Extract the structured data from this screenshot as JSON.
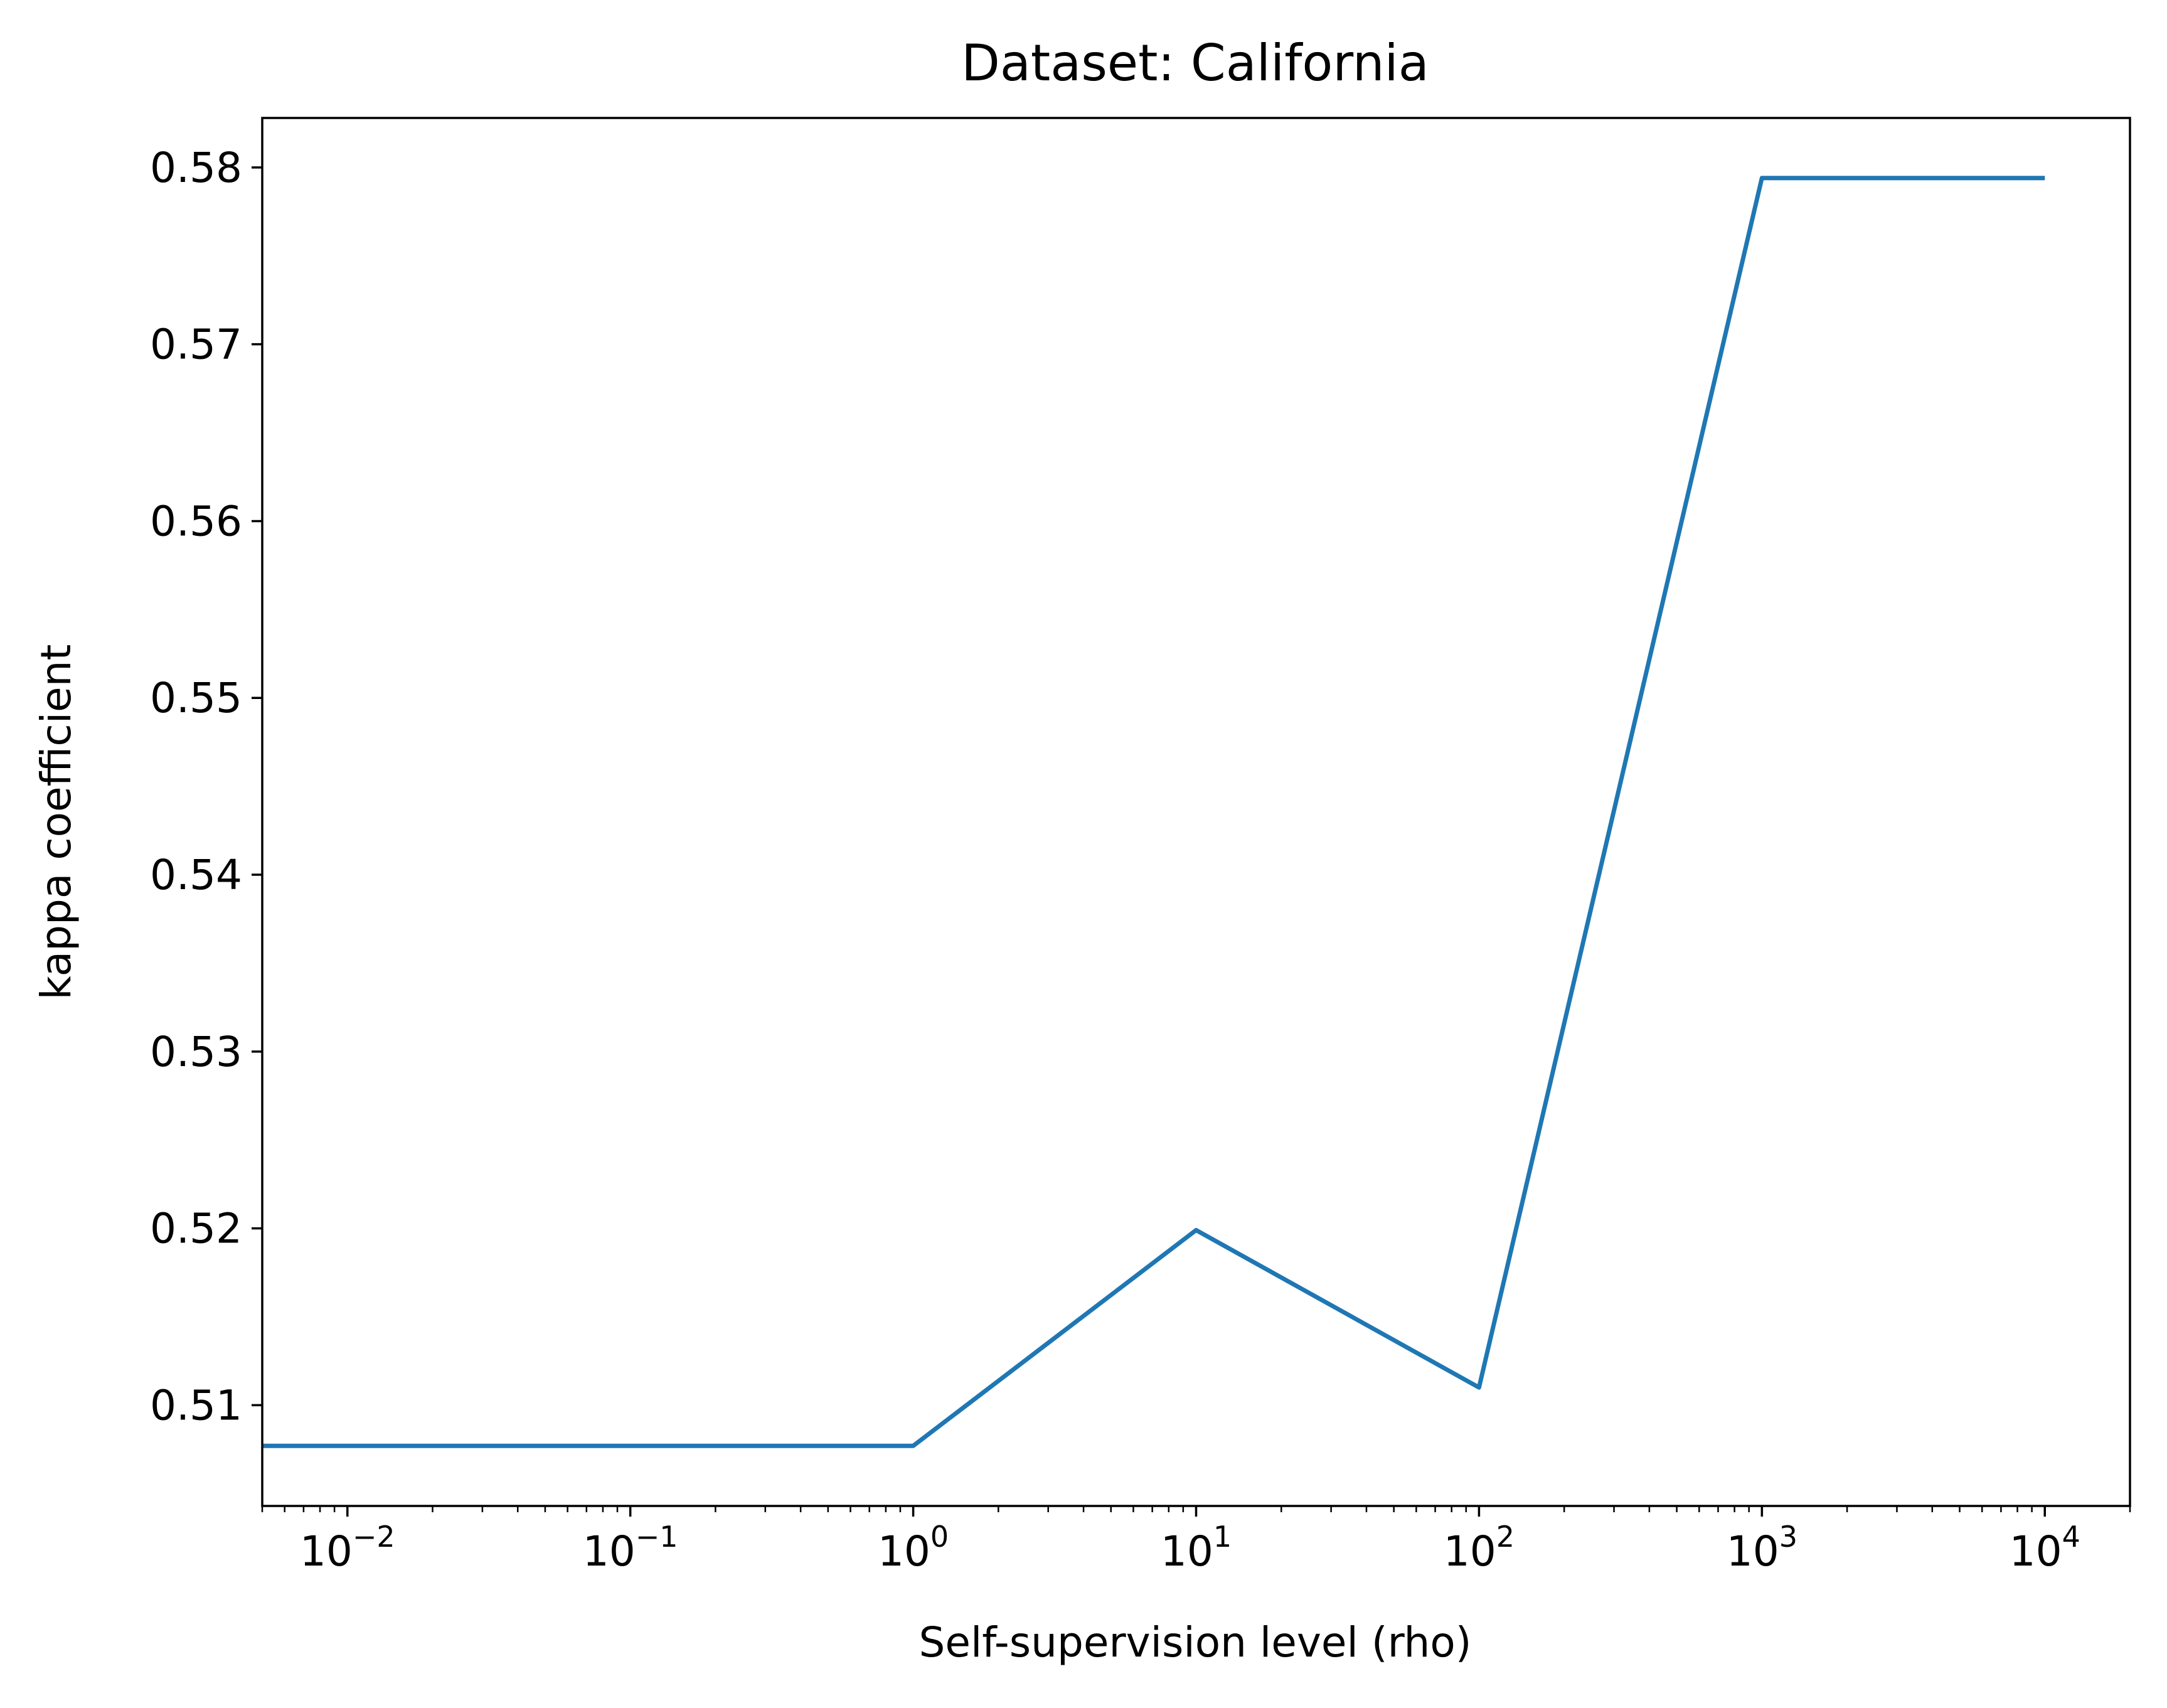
{
  "chart_data": {
    "type": "line",
    "title": "Dataset: California",
    "xlabel": "Self-supervision level (rho)",
    "ylabel": "kappa coefficient",
    "x_scale": "log",
    "xlim": [
      0.005,
      20000
    ],
    "ylim": [
      0.5043,
      0.5828
    ],
    "grid": false,
    "legend": "none",
    "x_ticks": [
      {
        "value": 0.01,
        "base": "10",
        "exp": "−2"
      },
      {
        "value": 0.1,
        "base": "10",
        "exp": "−1"
      },
      {
        "value": 1,
        "base": "10",
        "exp": "0"
      },
      {
        "value": 10,
        "base": "10",
        "exp": "1"
      },
      {
        "value": 100,
        "base": "10",
        "exp": "2"
      },
      {
        "value": 1000,
        "base": "10",
        "exp": "3"
      },
      {
        "value": 10000,
        "base": "10",
        "exp": "4"
      }
    ],
    "y_ticks": [
      {
        "value": 0.51,
        "label": "0.51"
      },
      {
        "value": 0.52,
        "label": "0.52"
      },
      {
        "value": 0.53,
        "label": "0.53"
      },
      {
        "value": 0.54,
        "label": "0.54"
      },
      {
        "value": 0.55,
        "label": "0.55"
      },
      {
        "value": 0.56,
        "label": "0.56"
      },
      {
        "value": 0.57,
        "label": "0.57"
      },
      {
        "value": 0.58,
        "label": "0.58"
      }
    ],
    "series": [
      {
        "color": "#1f77b4",
        "x": [
          0,
          0.001,
          0.01,
          0.1,
          1,
          10,
          100,
          1000,
          10000
        ],
        "y": [
          0.5077,
          0.5077,
          0.5077,
          0.5077,
          0.5077,
          0.5199,
          0.511,
          0.5794,
          0.5794
        ]
      }
    ]
  }
}
